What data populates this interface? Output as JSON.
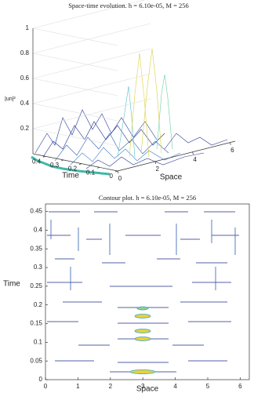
{
  "chart_data": [
    {
      "type": "surface3d",
      "title": "Space-time evolution. h = 6.10e-05, M = 256",
      "xlabel": "Space",
      "ylabel": "Time",
      "zlabel": "|un|²",
      "xlim": [
        0,
        6.28
      ],
      "xticks": [
        0,
        2,
        4,
        6
      ],
      "ylim": [
        0,
        0.47
      ],
      "yticks": [
        0,
        0.1,
        0.2,
        0.3,
        0.4
      ],
      "zlim": [
        0,
        1
      ],
      "zticks": [
        0.2,
        0.4,
        0.6,
        0.8,
        1
      ],
      "grid": true
    },
    {
      "type": "contour",
      "title": "Contour plot. h = 6.10e-05, M = 256",
      "xlabel": "Space",
      "ylabel": "Time",
      "xlim": [
        0,
        6.28
      ],
      "xticks": [
        0,
        1,
        2,
        3,
        4,
        5,
        6
      ],
      "ylim": [
        0,
        0.47
      ],
      "yticks": [
        0,
        0.05,
        0.1,
        0.15,
        0.2,
        0.25,
        0.3,
        0.35,
        0.4,
        0.45
      ]
    }
  ]
}
